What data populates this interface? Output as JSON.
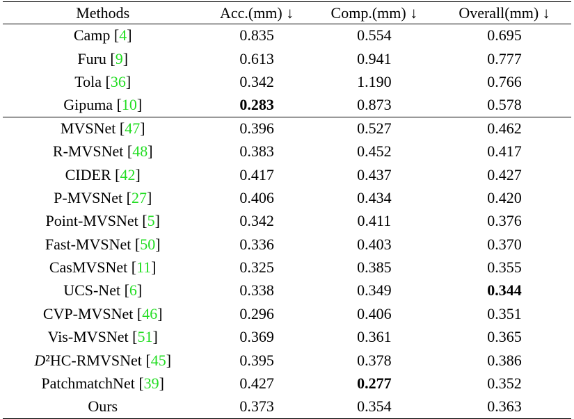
{
  "table": {
    "headers": [
      "Methods",
      "Acc.(mm) ↓",
      "Comp.(mm) ↓",
      "Overall(mm) ↓"
    ],
    "groups": [
      [
        {
          "method": "Camp [4]",
          "acc": "0.835",
          "comp": "0.554",
          "overall": "0.695"
        },
        {
          "method": "Furu [9]",
          "acc": "0.613",
          "comp": "0.941",
          "overall": "0.777"
        },
        {
          "method": "Tola [36]",
          "acc": "0.342",
          "comp": "1.190",
          "overall": "0.766"
        },
        {
          "method": "Gipuma [10]",
          "acc": "0.283",
          "comp": "0.873",
          "overall": "0.578",
          "best": "acc"
        }
      ],
      [
        {
          "method": "MVSNet [47]",
          "acc": "0.396",
          "comp": "0.527",
          "overall": "0.462"
        },
        {
          "method": "R-MVSNet [48]",
          "acc": "0.383",
          "comp": "0.452",
          "overall": "0.417"
        },
        {
          "method": "CIDER [42]",
          "acc": "0.417",
          "comp": "0.437",
          "overall": "0.427"
        },
        {
          "method": "P-MVSNet [27]",
          "acc": "0.406",
          "comp": "0.434",
          "overall": "0.420"
        },
        {
          "method": "Point-MVSNet [5]",
          "acc": "0.342",
          "comp": "0.411",
          "overall": "0.376"
        },
        {
          "method": "Fast-MVSNet [50]",
          "acc": "0.336",
          "comp": "0.403",
          "overall": "0.370"
        },
        {
          "method": "CasMVSNet [11]",
          "acc": "0.325",
          "comp": "0.385",
          "overall": "0.355"
        },
        {
          "method": "UCS-Net [6]",
          "acc": "0.338",
          "comp": "0.349",
          "overall": "0.344",
          "best": "overall"
        },
        {
          "method": "CVP-MVSNet [46]",
          "acc": "0.296",
          "comp": "0.406",
          "overall": "0.351"
        },
        {
          "method": "Vis-MVSNet [51]",
          "acc": "0.369",
          "comp": "0.361",
          "overall": "0.365"
        },
        {
          "method": "D²HC-RMVSNet [45]",
          "acc": "0.395",
          "comp": "0.378",
          "overall": "0.386"
        },
        {
          "method": "PatchmatchNet [39]",
          "acc": "0.427",
          "comp": "0.277",
          "overall": "0.352",
          "best": "comp"
        },
        {
          "method": "Ours",
          "acc": "0.373",
          "comp": "0.354",
          "overall": "0.363"
        }
      ]
    ]
  }
}
